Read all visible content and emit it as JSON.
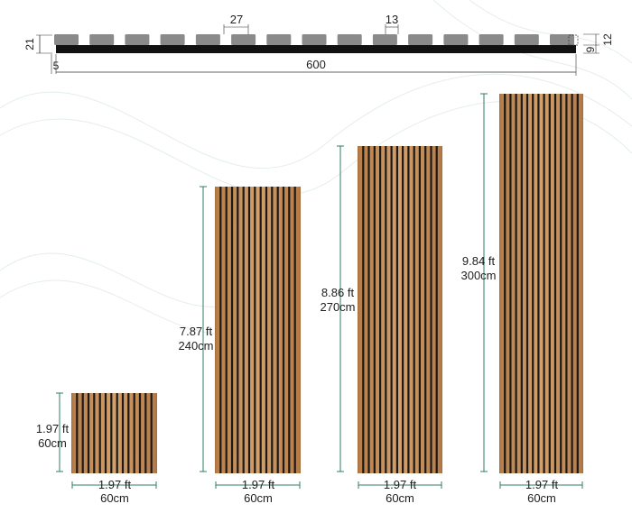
{
  "profile": {
    "dims": {
      "height_total": "21",
      "slat_width": "27",
      "gap_width": "13",
      "slat_depth": "12",
      "backing_thickness": "9",
      "edge_offset": "5",
      "total_width": "600"
    },
    "slat_count": 15
  },
  "panels": [
    {
      "height_ft": "1.97 ft",
      "height_cm": "60cm",
      "width_ft": "1.97 ft",
      "width_cm": "60cm"
    },
    {
      "height_ft": "7.87 ft",
      "height_cm": "240cm",
      "width_ft": "1.97 ft",
      "width_cm": "60cm"
    },
    {
      "height_ft": "8.86 ft",
      "height_cm": "270cm",
      "width_ft": "1.97 ft",
      "width_cm": "60cm"
    },
    {
      "height_ft": "9.84 ft",
      "height_cm": "300cm",
      "width_ft": "1.97 ft",
      "width_cm": "60cm"
    }
  ],
  "colors": {
    "wood_light": "#c8925e",
    "wood_dark": "#a8703f",
    "gap": "#1c1a19",
    "slat_profile": "#8a8a8a",
    "backing": "#111111",
    "dim_line": "#2f7d63",
    "background_accent": "#e7f2ea"
  }
}
